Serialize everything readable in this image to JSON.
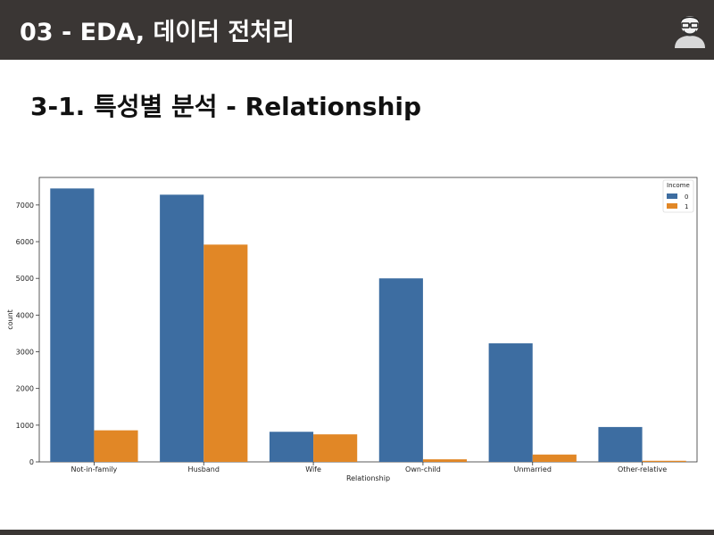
{
  "header": {
    "title": "03 - EDA, 데이터 전처리",
    "avatar_icon": "person-with-glasses-icon"
  },
  "slide": {
    "title": "3-1. 특성별 분석 - Relationship"
  },
  "colors": {
    "header_bg": "#3a3634",
    "series_0": "#3d6da1",
    "series_1": "#e18726"
  },
  "chart_data": {
    "type": "bar",
    "categories": [
      "Not-in-family",
      "Husband",
      "Wife",
      "Own-child",
      "Unmarried",
      "Other-relative"
    ],
    "series": [
      {
        "name": "0",
        "values": [
          7450,
          7280,
          820,
          5000,
          3230,
          950
        ]
      },
      {
        "name": "1",
        "values": [
          860,
          5920,
          750,
          70,
          200,
          30
        ]
      }
    ],
    "xlabel": "Relationship",
    "ylabel": "count",
    "ylim": [
      0,
      7750
    ],
    "yticks": [
      0,
      1000,
      2000,
      3000,
      4000,
      5000,
      6000,
      7000
    ],
    "legend": {
      "title": "Income",
      "position": "top-right"
    },
    "grid": false
  }
}
